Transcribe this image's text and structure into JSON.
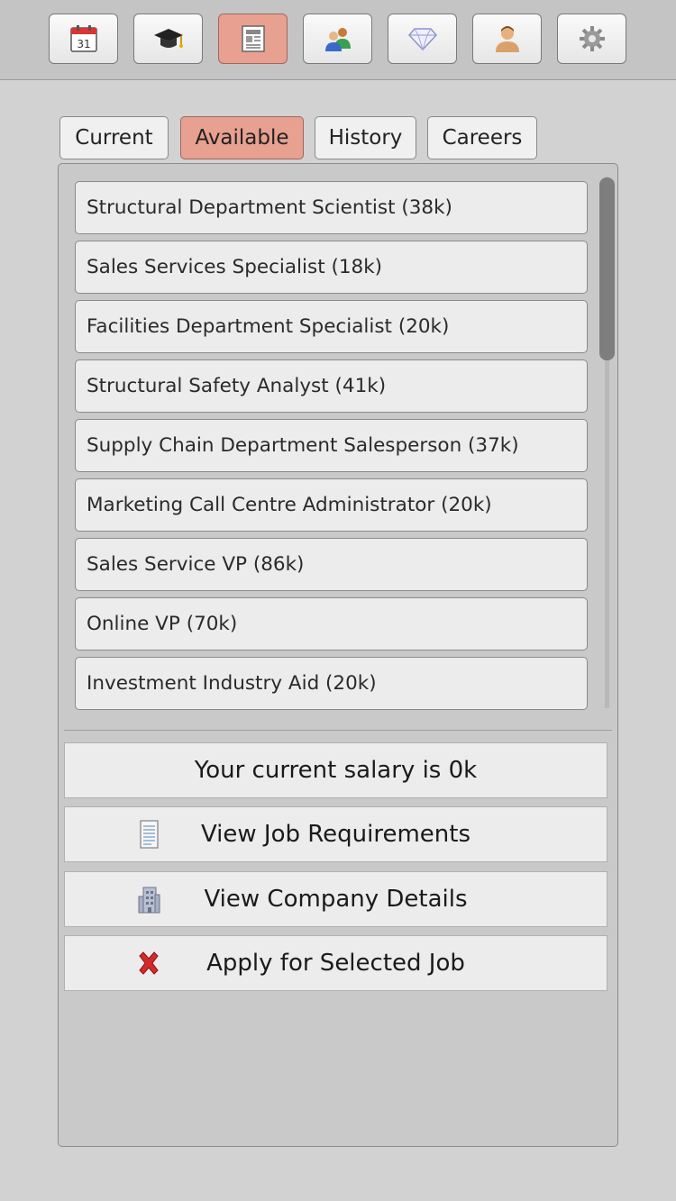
{
  "toolbar": {
    "items": [
      {
        "name": "calendar",
        "icon": "calendar-icon",
        "day": "31"
      },
      {
        "name": "education",
        "icon": "graduation-cap-icon"
      },
      {
        "name": "jobs",
        "icon": "newspaper-icon",
        "active": true
      },
      {
        "name": "relationships",
        "icon": "people-icon"
      },
      {
        "name": "assets",
        "icon": "diamond-icon"
      },
      {
        "name": "profile",
        "icon": "person-icon"
      },
      {
        "name": "settings",
        "icon": "gear-icon"
      }
    ]
  },
  "tabs": [
    {
      "label": "Current"
    },
    {
      "label": "Available",
      "active": true
    },
    {
      "label": "History"
    },
    {
      "label": "Careers"
    }
  ],
  "jobs": [
    "Structural Department Scientist (38k)",
    "Sales Services Specialist (18k)",
    "Facilities Department Specialist (20k)",
    "Structural Safety Analyst (41k)",
    "Supply Chain Department Salesperson (37k)",
    "Marketing Call Centre Administrator (20k)",
    "Sales Service VP (86k)",
    "Online VP (70k)",
    "Investment Industry Aid (20k)"
  ],
  "actions": {
    "salary_text": "Your current salary is 0k",
    "view_requirements": "View Job Requirements",
    "view_company": "View Company Details",
    "apply": "Apply for Selected Job"
  },
  "colors": {
    "active_accent": "#e8a090",
    "background": "#d2d2d2",
    "apply_icon": "#d42a2a"
  }
}
